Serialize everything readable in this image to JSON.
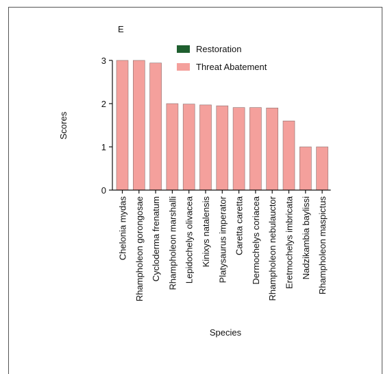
{
  "chart_data": {
    "type": "bar",
    "panel_label": "E",
    "xlabel": "Species",
    "ylabel": "Scores",
    "ylim": [
      0,
      3
    ],
    "yticks": [
      0,
      1,
      2,
      3
    ],
    "categories": [
      "Chelonia mydas",
      "Rhampholeon gorongosae",
      "Cycloderma frenatum",
      "Rhampholeon marshalli",
      "Lepidochelys olivacea",
      "Kinixys natalensis",
      "Platysaurus imperator",
      "Caretta caretta",
      "Dermochelys coriacea",
      "Rhampholeon nebulauctor",
      "Eretmochelys imbricata",
      "Nadzikambia baylissi",
      "Rhampholeon maspictus"
    ],
    "series": [
      {
        "name": "Restoration",
        "color": "#1f5f2f",
        "values": [
          0,
          0,
          0,
          0,
          0,
          0,
          0,
          0,
          0,
          0,
          0,
          0,
          0
        ]
      },
      {
        "name": "Threat Abatement",
        "color": "#f4a09c",
        "values": [
          3.0,
          3.0,
          2.94,
          2.0,
          1.99,
          1.97,
          1.95,
          1.91,
          1.91,
          1.9,
          1.6,
          1.0,
          1.0
        ]
      }
    ],
    "legend_position": "top-right",
    "grid": false
  }
}
